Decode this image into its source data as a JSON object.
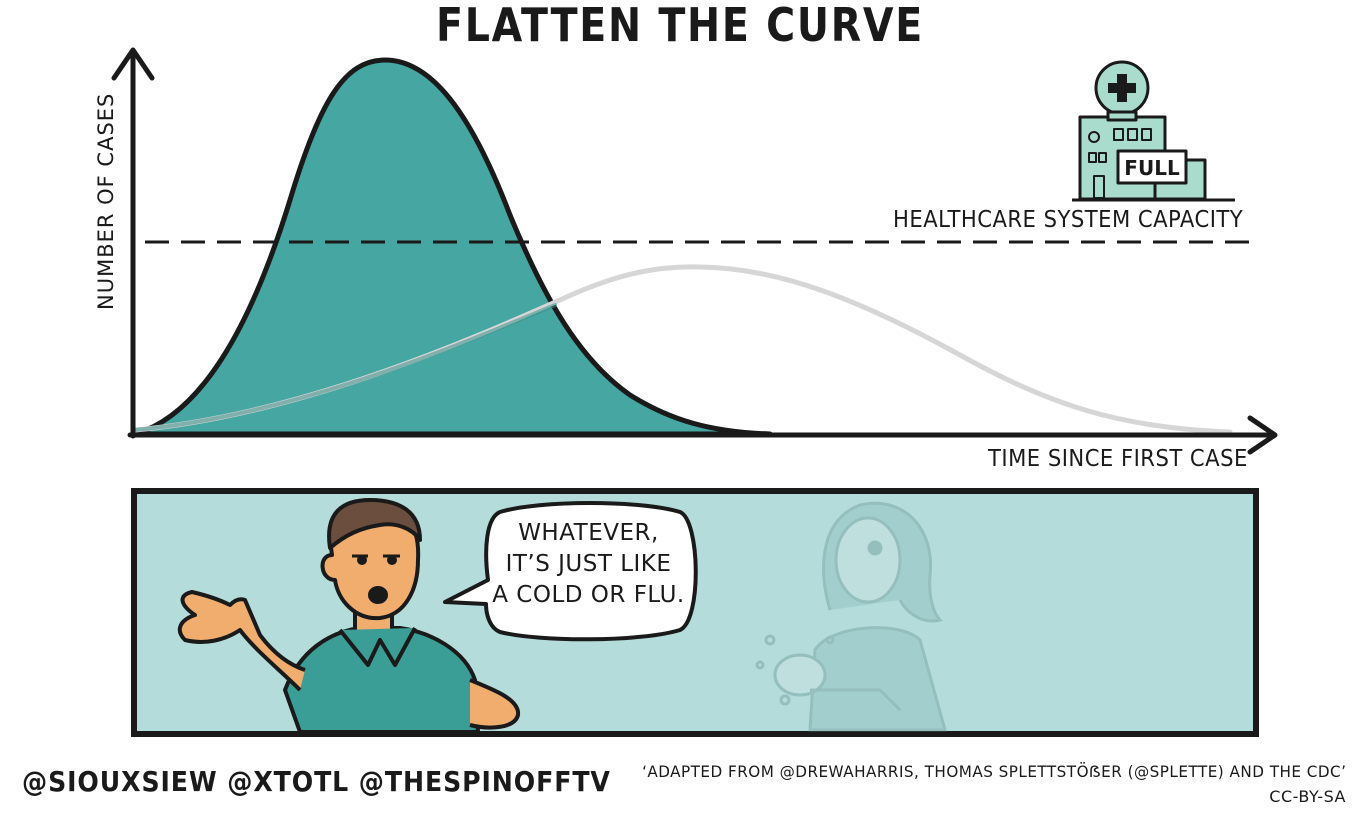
{
  "title": "FLATTEN THE CURVE",
  "y_axis_label": "NUMBER OF CASES",
  "x_axis_label": "TIME SINCE FIRST CASE",
  "capacity_label": "HEALTHCARE SYSTEM CAPACITY",
  "hospital_sign": "FULL",
  "speech_bubble": {
    "lines": [
      "WHATEVER,",
      "IT’S JUST LIKE",
      "A COLD OR FLU."
    ]
  },
  "credits": "@SIOUXSIEW @XTOTL @THESPINOFFTV",
  "attribution": "‘ADAPTED FROM @DREWAHARRIS, THOMAS SPLETTSTÖẞER (@SPLETTE) AND THE CDC’",
  "license": "CC-BY-SA",
  "colors": {
    "peak_fill": "#45a6a2",
    "flat_curve": "#d6d6d6",
    "panel_bg": "#b3dcdb",
    "outline": "#1a1a1a",
    "hospital": "#a9dccc"
  },
  "icons": [
    "hospital-icon",
    "medical-cross-icon",
    "man-character",
    "woman-washing-hands-character"
  ]
}
